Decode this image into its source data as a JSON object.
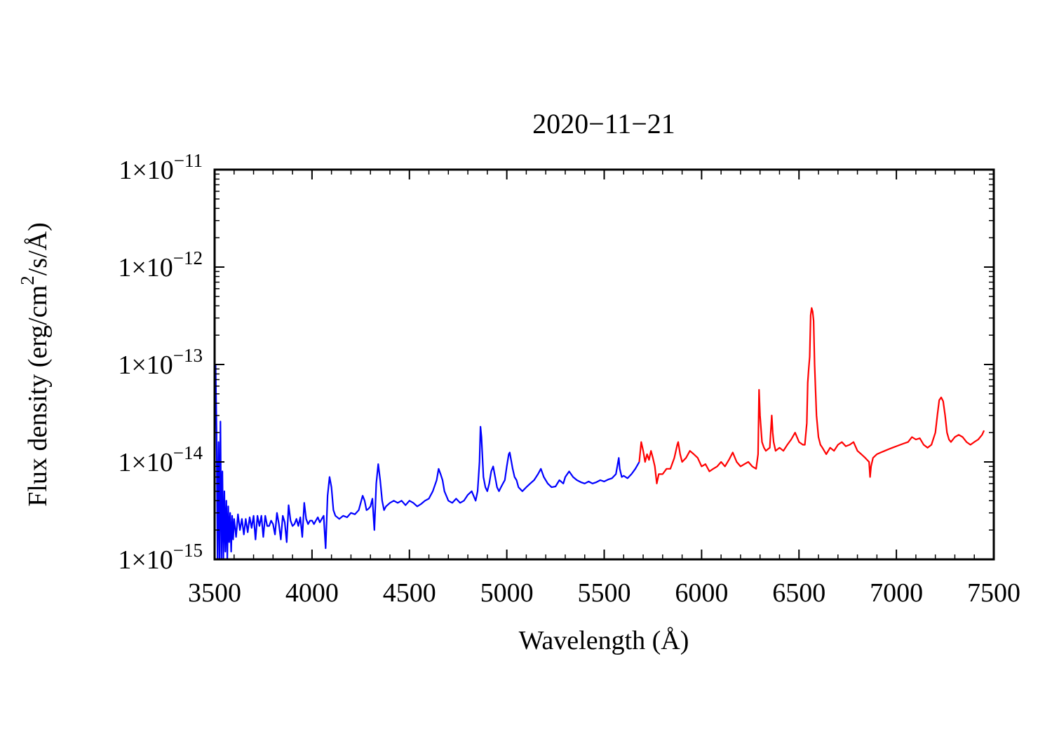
{
  "chart_data": {
    "type": "line",
    "title": "2020−11−21",
    "xlabel": "Wavelength (Å)",
    "ylabel": {
      "prefix": "Flux density (erg/cm",
      "superscript": "2",
      "suffix": "/s/Å)"
    },
    "xlim": [
      3500,
      7500
    ],
    "ylim": [
      1e-15,
      1e-11
    ],
    "yscale": "log",
    "x_ticks": [
      "3500",
      "4000",
      "4500",
      "5000",
      "5500",
      "6000",
      "6500",
      "7000",
      "7500"
    ],
    "y_ticks": [
      {
        "base": "1×10",
        "exp": "−15"
      },
      {
        "base": "1×10",
        "exp": "−14"
      },
      {
        "base": "1×10",
        "exp": "−13"
      },
      {
        "base": "1×10",
        "exp": "−12"
      },
      {
        "base": "1×10",
        "exp": "−11"
      }
    ],
    "grid": false,
    "legend": "none",
    "series": [
      {
        "color": "#0000ff",
        "x": [
          3505,
          3510,
          3515,
          3520,
          3525,
          3530,
          3535,
          3540,
          3545,
          3550,
          3555,
          3560,
          3565,
          3570,
          3575,
          3580,
          3585,
          3590,
          3595,
          3600,
          3610,
          3620,
          3630,
          3640,
          3650,
          3660,
          3670,
          3680,
          3690,
          3700,
          3710,
          3720,
          3730,
          3740,
          3750,
          3760,
          3770,
          3780,
          3790,
          3800,
          3810,
          3820,
          3830,
          3840,
          3850,
          3860,
          3870,
          3880,
          3890,
          3900,
          3910,
          3920,
          3930,
          3940,
          3950,
          3960,
          3970,
          3980,
          3990,
          4000,
          4010,
          4020,
          4030,
          4040,
          4050,
          4060,
          4070,
          4080,
          4090,
          4100,
          4110,
          4120,
          4140,
          4160,
          4180,
          4200,
          4220,
          4240,
          4260,
          4270,
          4280,
          4290,
          4300,
          4310,
          4320,
          4330,
          4340,
          4350,
          4360,
          4370,
          4380,
          4400,
          4420,
          4440,
          4460,
          4480,
          4500,
          4520,
          4540,
          4560,
          4580,
          4600,
          4620,
          4640,
          4650,
          4660,
          4670,
          4680,
          4700,
          4720,
          4740,
          4760,
          4780,
          4800,
          4820,
          4840,
          4850,
          4860,
          4865,
          4870,
          4880,
          4890,
          4900,
          4910,
          4920,
          4930,
          4940,
          4950,
          4960,
          4970,
          4980,
          4990,
          5000,
          5010,
          5015,
          5020,
          5030,
          5040,
          5050,
          5060,
          5080,
          5100,
          5120,
          5140,
          5160,
          5175,
          5190,
          5210,
          5230,
          5250,
          5270,
          5290,
          5300,
          5320,
          5340,
          5360,
          5380,
          5400,
          5420,
          5440,
          5460,
          5480,
          5500,
          5520,
          5540,
          5560,
          5575,
          5580,
          5590,
          5600,
          5620,
          5640,
          5660,
          5680
        ],
        "y": [
          1e-13,
          2e-14,
          1e-15,
          1.6e-14,
          1e-15,
          2.6e-14,
          1e-15,
          8e-15,
          1e-15,
          5e-15,
          1.2e-15,
          4e-15,
          1e-15,
          3.5e-15,
          1.5e-15,
          3e-15,
          1.2e-15,
          2.8e-15,
          1.6e-15,
          2.6e-15,
          1.7e-15,
          2.9e-15,
          2e-15,
          2.6e-15,
          1.8e-15,
          2.6e-15,
          1.9e-15,
          2.7e-15,
          2.1e-15,
          2.8e-15,
          1.6e-15,
          2.8e-15,
          2.2e-15,
          2.8e-15,
          1.7e-15,
          2.8e-15,
          2.2e-15,
          2.2e-15,
          2.5e-15,
          2.3e-15,
          1.8e-15,
          3e-15,
          2.3e-15,
          1.6e-15,
          2.8e-15,
          2.4e-15,
          1.5e-15,
          3.6e-15,
          2.5e-15,
          2.2e-15,
          2.3e-15,
          2.6e-15,
          2.2e-15,
          2.7e-15,
          1.7e-15,
          3.8e-15,
          2.6e-15,
          2.3e-15,
          2.5e-15,
          2.5e-15,
          2.3e-15,
          2.5e-15,
          2.7e-15,
          2.4e-15,
          2.6e-15,
          2.8e-15,
          1.3e-15,
          4.5e-15,
          7e-15,
          5.5e-15,
          3.2e-15,
          2.8e-15,
          2.6e-15,
          2.8e-15,
          2.7e-15,
          3e-15,
          2.9e-15,
          3.2e-15,
          4.5e-15,
          4e-15,
          3.2e-15,
          3.3e-15,
          3.5e-15,
          4.2e-15,
          2e-15,
          6e-15,
          9.5e-15,
          6.5e-15,
          4e-15,
          3.2e-15,
          3.5e-15,
          3.8e-15,
          4e-15,
          3.8e-15,
          4e-15,
          3.6e-15,
          4e-15,
          3.8e-15,
          3.5e-15,
          3.7e-15,
          4e-15,
          4.2e-15,
          5e-15,
          6.5e-15,
          8.5e-15,
          7.5e-15,
          6.5e-15,
          5e-15,
          4e-15,
          3.8e-15,
          4.2e-15,
          3.8e-15,
          4e-15,
          4.6e-15,
          5e-15,
          4e-15,
          5e-15,
          1e-14,
          2.3e-14,
          1.8e-14,
          7e-15,
          5.5e-15,
          5e-15,
          6e-15,
          8e-15,
          9e-15,
          7e-15,
          5.5e-15,
          5e-15,
          5.5e-15,
          6e-15,
          6.5e-15,
          9e-15,
          1.2e-14,
          1.25e-14,
          1.1e-14,
          8.5e-15,
          7e-15,
          6.5e-15,
          5.5e-15,
          5e-15,
          5.5e-15,
          6e-15,
          6.5e-15,
          7.5e-15,
          8.5e-15,
          7e-15,
          6e-15,
          5.5e-15,
          5.6e-15,
          6.5e-15,
          6e-15,
          7e-15,
          8e-15,
          7e-15,
          6.5e-15,
          6.2e-15,
          6e-15,
          6.3e-15,
          6e-15,
          6.2e-15,
          6.5e-15,
          6.3e-15,
          6.6e-15,
          6.8e-15,
          7.5e-15,
          1.1e-14,
          8.5e-15,
          7e-15,
          7.2e-15,
          6.8e-15,
          7.5e-15,
          8.5e-15,
          1e-14
        ]
      },
      {
        "color": "#ff0000",
        "x": [
          5680,
          5690,
          5700,
          5710,
          5720,
          5730,
          5740,
          5750,
          5760,
          5770,
          5780,
          5800,
          5820,
          5840,
          5860,
          5875,
          5880,
          5890,
          5900,
          5920,
          5940,
          5960,
          5980,
          6000,
          6020,
          6040,
          6060,
          6080,
          6100,
          6120,
          6140,
          6160,
          6180,
          6200,
          6220,
          6240,
          6260,
          6280,
          6290,
          6295,
          6300,
          6310,
          6320,
          6330,
          6340,
          6350,
          6360,
          6365,
          6370,
          6380,
          6400,
          6420,
          6440,
          6460,
          6480,
          6500,
          6520,
          6530,
          6540,
          6545,
          6550,
          6555,
          6560,
          6565,
          6570,
          6575,
          6580,
          6590,
          6600,
          6610,
          6620,
          6640,
          6660,
          6680,
          6700,
          6720,
          6740,
          6760,
          6780,
          6800,
          6820,
          6840,
          6860,
          6865,
          6870,
          6880,
          6900,
          6920,
          6940,
          6960,
          6980,
          7000,
          7020,
          7040,
          7060,
          7080,
          7100,
          7120,
          7140,
          7160,
          7180,
          7200,
          7210,
          7220,
          7230,
          7240,
          7250,
          7260,
          7270,
          7280,
          7300,
          7320,
          7340,
          7360,
          7380,
          7400,
          7420,
          7440,
          7450
        ],
        "y": [
          1e-14,
          1.6e-14,
          1.3e-14,
          1e-14,
          1.2e-14,
          1.05e-14,
          1.3e-14,
          1.1e-14,
          9e-15,
          6e-15,
          7.5e-15,
          7.5e-15,
          8.5e-15,
          8.5e-15,
          1.1e-14,
          1.5e-14,
          1.6e-14,
          1.2e-14,
          1e-14,
          1.1e-14,
          1.3e-14,
          1.2e-14,
          1.1e-14,
          9e-15,
          9.5e-15,
          8e-15,
          8.5e-15,
          9e-15,
          1e-14,
          9e-15,
          1.05e-14,
          1.25e-14,
          1e-14,
          9e-15,
          9.5e-15,
          1e-14,
          9e-15,
          8.5e-15,
          1.2e-14,
          5.5e-14,
          3e-14,
          1.6e-14,
          1.4e-14,
          1.3e-14,
          1.35e-14,
          1.4e-14,
          3e-14,
          2e-14,
          1.6e-14,
          1.3e-14,
          1.4e-14,
          1.3e-14,
          1.5e-14,
          1.7e-14,
          2e-14,
          1.6e-14,
          1.5e-14,
          1.5e-14,
          2.5e-14,
          6.5e-14,
          9e-14,
          1.2e-13,
          3.2e-13,
          3.8e-13,
          3.5e-13,
          2.8e-13,
          1e-13,
          3e-14,
          1.8e-14,
          1.5e-14,
          1.4e-14,
          1.2e-14,
          1.4e-14,
          1.3e-14,
          1.5e-14,
          1.6e-14,
          1.45e-14,
          1.5e-14,
          1.6e-14,
          1.3e-14,
          1.2e-14,
          1.1e-14,
          1e-14,
          7e-15,
          9e-15,
          1.1e-14,
          1.2e-14,
          1.25e-14,
          1.3e-14,
          1.35e-14,
          1.4e-14,
          1.45e-14,
          1.5e-14,
          1.55e-14,
          1.6e-14,
          1.8e-14,
          1.7e-14,
          1.75e-14,
          1.5e-14,
          1.4e-14,
          1.5e-14,
          2e-14,
          3e-14,
          4.3e-14,
          4.6e-14,
          4.2e-14,
          3e-14,
          2e-14,
          1.7e-14,
          1.6e-14,
          1.8e-14,
          1.9e-14,
          1.8e-14,
          1.6e-14,
          1.5e-14,
          1.6e-14,
          1.7e-14,
          1.9e-14,
          2.1e-14
        ]
      }
    ]
  }
}
